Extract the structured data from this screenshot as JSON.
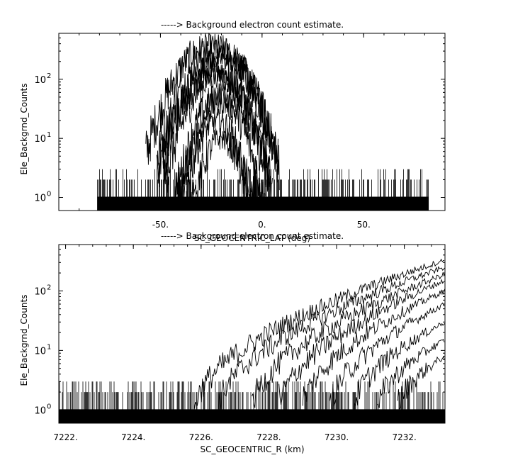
{
  "chart_data": [
    {
      "type": "line",
      "title": "-----> Background electron count estimate.",
      "xlabel": "SC_GEOCENTRIC_LAT (deg)",
      "ylabel": "Ele_Backgrnd_Counts",
      "xlim": [
        -100,
        90
      ],
      "ylim": [
        0.6,
        600
      ],
      "yscale": "log",
      "x_ticks": [
        {
          "value": -50,
          "label": "-50."
        },
        {
          "value": 0,
          "label": "0."
        },
        {
          "value": 50,
          "label": "50."
        }
      ],
      "y_ticks": [
        {
          "value": 1,
          "base": "10",
          "exp": "0"
        },
        {
          "value": 10,
          "base": "10",
          "exp": "1"
        },
        {
          "value": 100,
          "base": "10",
          "exp": "2"
        }
      ],
      "noise_floor": {
        "x_range": [
          -81,
          82
        ],
        "levels": [
          0,
          1,
          2,
          3
        ]
      },
      "series": [
        {
          "peak_lat": -25,
          "peak_counts": 380,
          "half_width": 28
        },
        {
          "peak_lat": -22,
          "peak_counts": 300,
          "half_width": 26
        },
        {
          "peak_lat": -20,
          "peak_counts": 220,
          "half_width": 25
        },
        {
          "peak_lat": -24,
          "peak_counts": 160,
          "half_width": 24
        },
        {
          "peak_lat": -22,
          "peak_counts": 110,
          "half_width": 23
        },
        {
          "peak_lat": -19,
          "peak_counts": 60,
          "half_width": 21
        },
        {
          "peak_lat": -20,
          "peak_counts": 40,
          "half_width": 19
        },
        {
          "peak_lat": -22,
          "peak_counts": 20,
          "half_width": 17
        },
        {
          "peak_lat": -20,
          "peak_counts": 10,
          "half_width": 15
        }
      ],
      "grid": false
    },
    {
      "type": "line",
      "title": "-----> Background electron count estimate.",
      "xlabel": "SC_GEOCENTRIC_R (km)",
      "ylabel": "Ele_Backgrnd_Counts",
      "xlim": [
        7221.8,
        7233.2
      ],
      "ylim": [
        0.6,
        600
      ],
      "yscale": "log",
      "x_ticks": [
        {
          "value": 7222,
          "label": "7222."
        },
        {
          "value": 7224,
          "label": "7224."
        },
        {
          "value": 7226,
          "label": "7226."
        },
        {
          "value": 7228,
          "label": "7228."
        },
        {
          "value": 7230,
          "label": "7230."
        },
        {
          "value": 7232,
          "label": "7232."
        }
      ],
      "y_ticks": [
        {
          "value": 1,
          "base": "10",
          "exp": "0"
        },
        {
          "value": 10,
          "base": "10",
          "exp": "1"
        },
        {
          "value": 100,
          "base": "10",
          "exp": "2"
        }
      ],
      "noise_floor": {
        "x_range": [
          7221.8,
          7233.2
        ],
        "levels": [
          0,
          1,
          2,
          3
        ]
      },
      "series": [
        {
          "start_r": 7225.8,
          "end_counts": 330
        },
        {
          "start_r": 7226.5,
          "end_counts": 250
        },
        {
          "start_r": 7227.5,
          "end_counts": 190
        },
        {
          "start_r": 7228.3,
          "end_counts": 150
        },
        {
          "start_r": 7229.0,
          "end_counts": 100
        },
        {
          "start_r": 7229.8,
          "end_counts": 60
        },
        {
          "start_r": 7230.5,
          "end_counts": 30
        },
        {
          "start_r": 7231.2,
          "end_counts": 15
        },
        {
          "start_r": 7231.8,
          "end_counts": 8
        }
      ],
      "grid": false
    }
  ]
}
